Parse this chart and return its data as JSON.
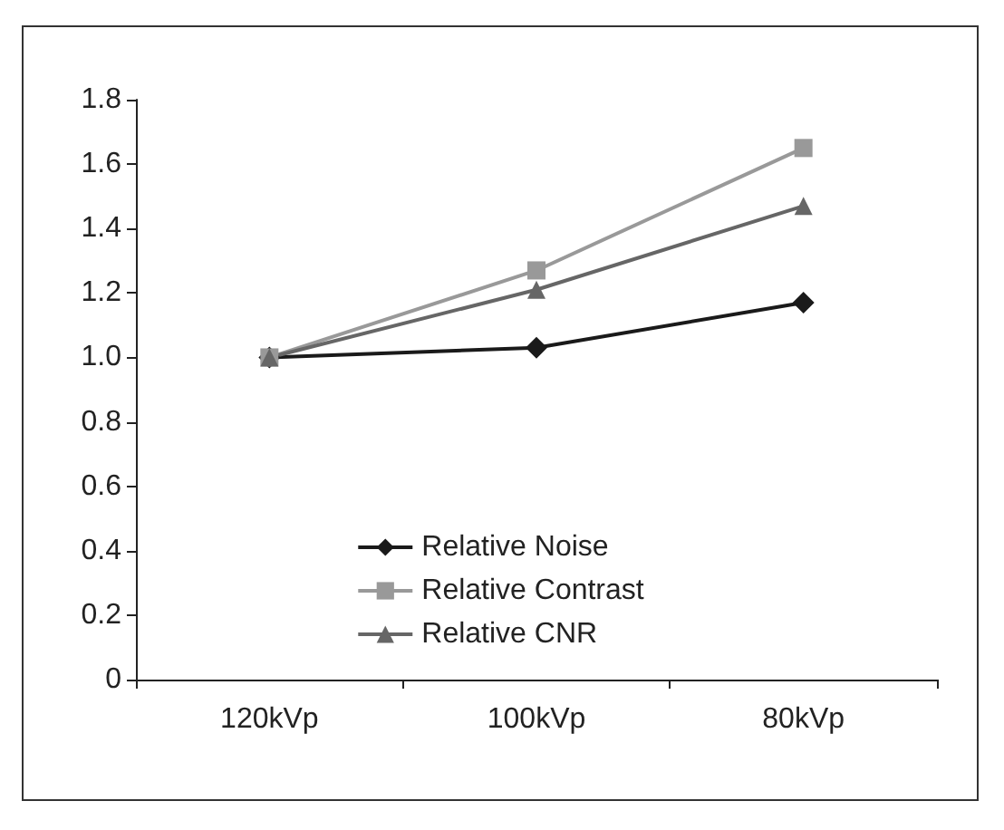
{
  "chart_data": {
    "type": "line",
    "categories": [
      "120kVp",
      "100kVp",
      "80kVp"
    ],
    "series": [
      {
        "name": "Relative Noise",
        "color": "#1a1a1a",
        "marker": "diamond",
        "values": [
          1.0,
          1.03,
          1.17
        ]
      },
      {
        "name": "Relative Contrast",
        "color": "#999999",
        "marker": "square",
        "values": [
          1.0,
          1.27,
          1.65
        ]
      },
      {
        "name": "Relative CNR",
        "color": "#666666",
        "marker": "triangle",
        "values": [
          1.0,
          1.21,
          1.47
        ]
      }
    ],
    "ylim": [
      0,
      1.8
    ],
    "yticks": [
      0,
      0.2,
      0.4,
      0.6,
      0.8,
      {
        "value": 1,
        "label": "1.0"
      },
      1.2,
      1.4,
      1.6,
      1.8
    ],
    "grid": false,
    "legend": "bottom",
    "line_style": "solid"
  }
}
